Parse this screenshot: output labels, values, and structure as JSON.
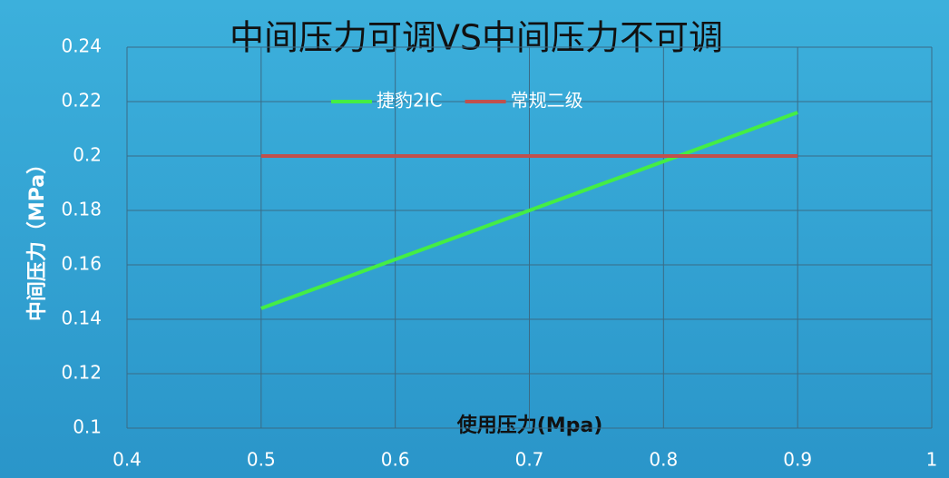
{
  "chart_data": {
    "type": "line",
    "title": "中间压力可调VS中间压力不可调",
    "x_label": "使用压力(Mpa)",
    "y_label": "中间压力（MPa）",
    "x": [
      0.5,
      0.6,
      0.7,
      0.8,
      0.9
    ],
    "series": [
      {
        "name": "捷豹2IC",
        "color": "#44ee44",
        "values": [
          0.144,
          0.162,
          0.18,
          0.198,
          0.216
        ]
      },
      {
        "name": "常规二级",
        "color": "#c0504d",
        "values": [
          0.2,
          0.2,
          0.2,
          0.2,
          0.2
        ]
      }
    ],
    "xlim": [
      0.4,
      1
    ],
    "xticks": [
      0.4,
      0.5,
      0.6,
      0.7,
      0.8,
      0.9,
      1
    ],
    "ylim": [
      0.1,
      0.24
    ],
    "yticks": [
      0.1,
      0.12,
      0.14,
      0.16,
      0.18,
      0.2,
      0.22,
      0.24
    ],
    "grid": true,
    "legend": "top"
  }
}
